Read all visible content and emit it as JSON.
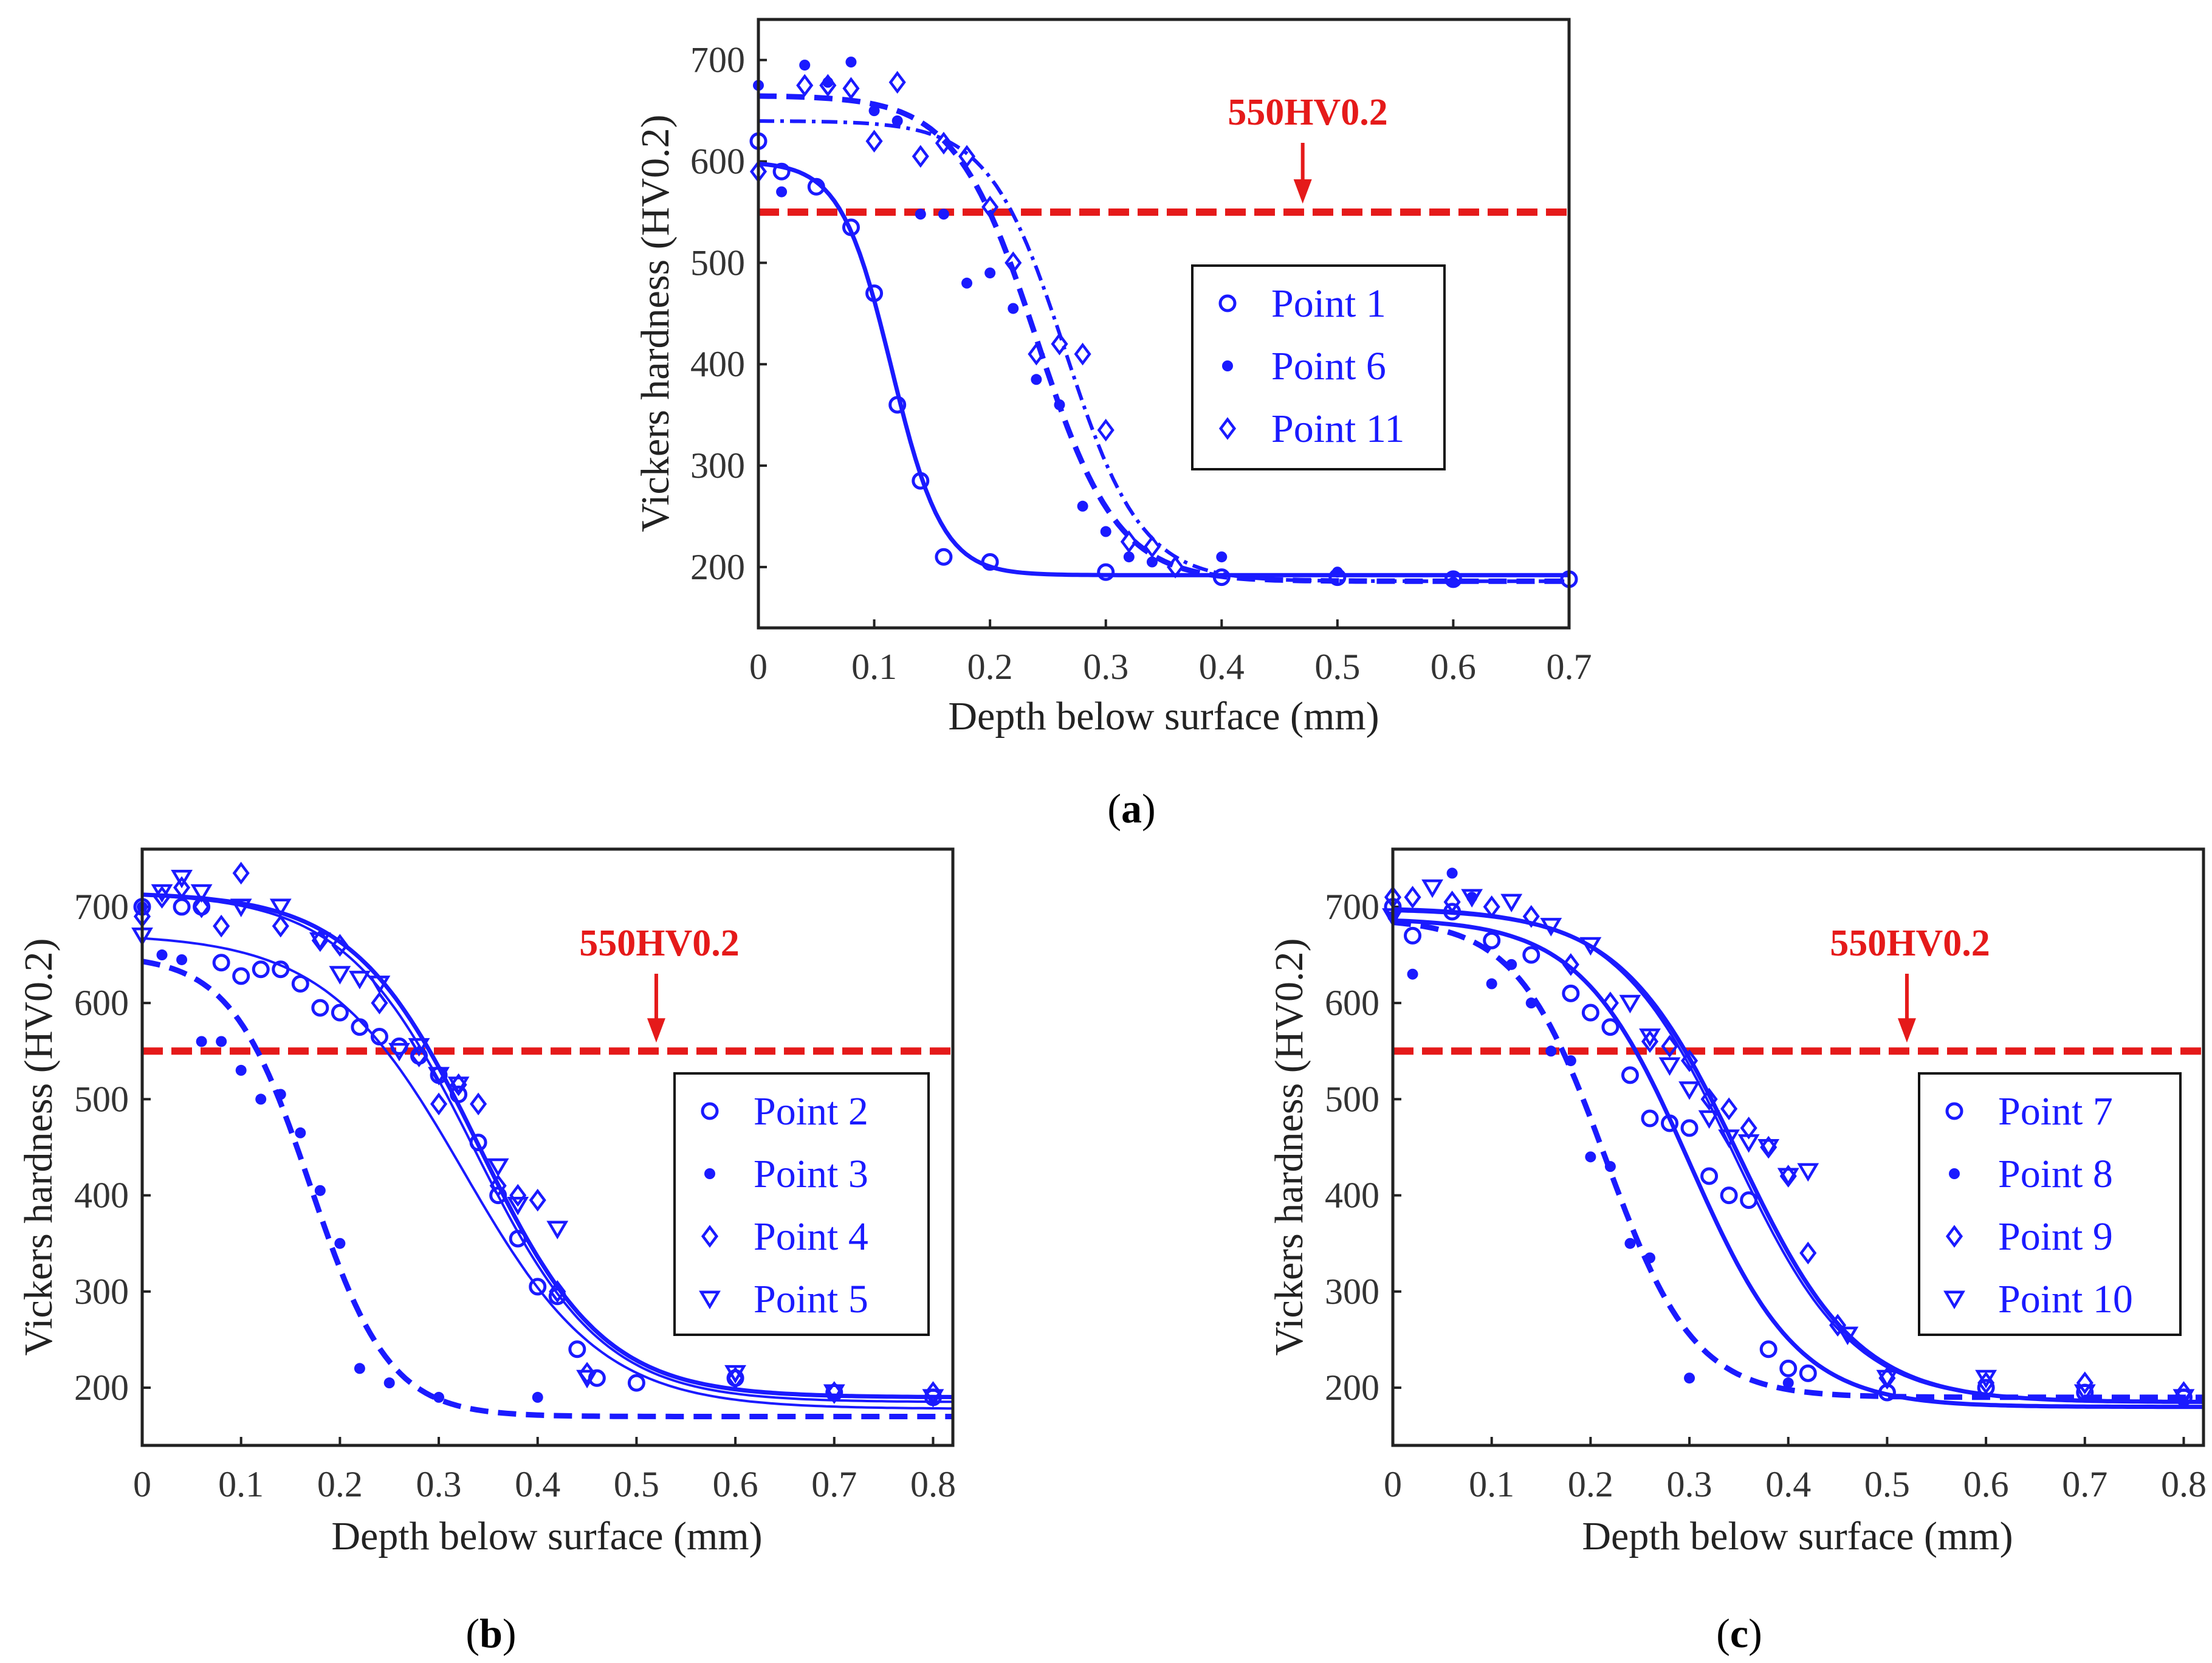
{
  "figure": {
    "captions": [
      {
        "open": "(",
        "letter": "a",
        "close": ")"
      },
      {
        "open": "(",
        "letter": "b",
        "close": ")"
      },
      {
        "open": "(",
        "letter": "c",
        "close": ")"
      }
    ]
  },
  "colors": {
    "series": "#1a1aff",
    "reference": "#e51a1a",
    "axis": "#222222"
  },
  "chart_data": [
    {
      "type": "scatter",
      "panel": "a",
      "xlabel": "Depth below surface (mm)",
      "ylabel": "Vickers hardness (HV0.2)",
      "xlim": [
        0,
        0.7
      ],
      "ylim": [
        140,
        740
      ],
      "xticks": [
        0,
        0.1,
        0.2,
        0.3,
        0.4,
        0.5,
        0.6,
        0.7
      ],
      "yticks": [
        200,
        300,
        400,
        500,
        600,
        700
      ],
      "reference": {
        "value": 550,
        "label": "550HV0.2",
        "arrow_x": 0.47
      },
      "legend_position": "right-middle",
      "series": [
        {
          "name": "Point 1",
          "marker": "circle",
          "line": "solid-thick",
          "fit": {
            "top": 600,
            "bottom": 192,
            "x0": 0.115,
            "w": 0.022
          },
          "points": [
            [
              0,
              620
            ],
            [
              0.02,
              590
            ],
            [
              0.05,
              575
            ],
            [
              0.08,
              535
            ],
            [
              0.1,
              470
            ],
            [
              0.12,
              360
            ],
            [
              0.14,
              285
            ],
            [
              0.16,
              210
            ],
            [
              0.2,
              205
            ],
            [
              0.3,
              195
            ],
            [
              0.4,
              190
            ],
            [
              0.5,
              190
            ],
            [
              0.6,
              188
            ],
            [
              0.7,
              188
            ]
          ]
        },
        {
          "name": "Point 6",
          "marker": "dot",
          "line": "dashed",
          "fit": {
            "top": 665,
            "bottom": 186,
            "x0": 0.24,
            "w": 0.035
          },
          "points": [
            [
              0,
              675
            ],
            [
              0.02,
              570
            ],
            [
              0.04,
              695
            ],
            [
              0.06,
              678
            ],
            [
              0.08,
              698
            ],
            [
              0.1,
              650
            ],
            [
              0.12,
              640
            ],
            [
              0.14,
              548
            ],
            [
              0.16,
              548
            ],
            [
              0.18,
              480
            ],
            [
              0.2,
              490
            ],
            [
              0.22,
              455
            ],
            [
              0.24,
              385
            ],
            [
              0.26,
              360
            ],
            [
              0.28,
              260
            ],
            [
              0.3,
              235
            ],
            [
              0.32,
              210
            ],
            [
              0.34,
              205
            ],
            [
              0.4,
              210
            ],
            [
              0.5,
              195
            ],
            [
              0.6,
              185
            ]
          ]
        },
        {
          "name": "Point 11",
          "marker": "diamond",
          "line": "dashdot",
          "fit": {
            "top": 640,
            "bottom": 186,
            "x0": 0.265,
            "w": 0.033
          },
          "points": [
            [
              0,
              590
            ],
            [
              0.04,
              675
            ],
            [
              0.06,
              675
            ],
            [
              0.08,
              672
            ],
            [
              0.1,
              620
            ],
            [
              0.12,
              678
            ],
            [
              0.14,
              605
            ],
            [
              0.16,
              618
            ],
            [
              0.18,
              605
            ],
            [
              0.2,
              555
            ],
            [
              0.22,
              500
            ],
            [
              0.24,
              410
            ],
            [
              0.26,
              420
            ],
            [
              0.28,
              410
            ],
            [
              0.3,
              335
            ],
            [
              0.32,
              225
            ],
            [
              0.34,
              220
            ],
            [
              0.36,
              200
            ]
          ]
        }
      ]
    },
    {
      "type": "scatter",
      "panel": "b",
      "xlabel": "Depth below surface (mm)",
      "ylabel": "Vickers hardness (HV0.2)",
      "xlim": [
        0,
        0.82
      ],
      "ylim": [
        140,
        760
      ],
      "xticks": [
        0,
        0.1,
        0.2,
        0.3,
        0.4,
        0.5,
        0.6,
        0.7,
        0.8
      ],
      "yticks": [
        200,
        300,
        400,
        500,
        600,
        700
      ],
      "reference": {
        "value": 550,
        "label": "550HV0.2",
        "arrow_x": 0.52
      },
      "legend_position": "right-middle",
      "series": [
        {
          "name": "Point 2",
          "marker": "circle",
          "line": "solid-thin",
          "fit": {
            "top": 672,
            "bottom": 178,
            "x0": 0.325,
            "w": 0.07
          },
          "points": [
            [
              0,
              700
            ],
            [
              0.04,
              700
            ],
            [
              0.06,
              700
            ],
            [
              0.08,
              642
            ],
            [
              0.1,
              628
            ],
            [
              0.12,
              635
            ],
            [
              0.14,
              635
            ],
            [
              0.16,
              620
            ],
            [
              0.18,
              595
            ],
            [
              0.2,
              590
            ],
            [
              0.22,
              575
            ],
            [
              0.24,
              565
            ],
            [
              0.26,
              555
            ],
            [
              0.28,
              545
            ],
            [
              0.3,
              525
            ],
            [
              0.32,
              505
            ],
            [
              0.34,
              455
            ],
            [
              0.36,
              400
            ],
            [
              0.38,
              355
            ],
            [
              0.4,
              305
            ],
            [
              0.42,
              295
            ],
            [
              0.44,
              240
            ],
            [
              0.46,
              210
            ],
            [
              0.5,
              205
            ],
            [
              0.6,
              210
            ],
            [
              0.7,
              195
            ],
            [
              0.8,
              190
            ]
          ]
        },
        {
          "name": "Point 3",
          "marker": "dot",
          "line": "dashed",
          "fit": {
            "top": 650,
            "bottom": 170,
            "x0": 0.17,
            "w": 0.04
          },
          "points": [
            [
              0,
              700
            ],
            [
              0.02,
              650
            ],
            [
              0.04,
              645
            ],
            [
              0.06,
              560
            ],
            [
              0.08,
              560
            ],
            [
              0.1,
              530
            ],
            [
              0.12,
              500
            ],
            [
              0.14,
              505
            ],
            [
              0.16,
              465
            ],
            [
              0.18,
              405
            ],
            [
              0.2,
              350
            ],
            [
              0.22,
              220
            ],
            [
              0.25,
              205
            ],
            [
              0.3,
              190
            ],
            [
              0.4,
              190
            ]
          ]
        },
        {
          "name": "Point 4",
          "marker": "diamond",
          "line": "solid-thin",
          "fit": {
            "top": 715,
            "bottom": 185,
            "x0": 0.335,
            "w": 0.065
          },
          "points": [
            [
              0,
              690
            ],
            [
              0.02,
              710
            ],
            [
              0.04,
              720
            ],
            [
              0.06,
              700
            ],
            [
              0.08,
              680
            ],
            [
              0.1,
              735
            ],
            [
              0.14,
              680
            ],
            [
              0.18,
              665
            ],
            [
              0.2,
              660
            ],
            [
              0.24,
              600
            ],
            [
              0.28,
              545
            ],
            [
              0.3,
              495
            ],
            [
              0.32,
              515
            ],
            [
              0.34,
              495
            ],
            [
              0.36,
              410
            ],
            [
              0.38,
              400
            ],
            [
              0.4,
              395
            ],
            [
              0.42,
              300
            ],
            [
              0.45,
              215
            ],
            [
              0.6,
              210
            ],
            [
              0.7,
              195
            ],
            [
              0.8,
              195
            ]
          ]
        },
        {
          "name": "Point 5",
          "marker": "triangle",
          "line": "solid-thick",
          "fit": {
            "top": 715,
            "bottom": 190,
            "x0": 0.34,
            "w": 0.063
          },
          "points": [
            [
              0,
              670
            ],
            [
              0.02,
              715
            ],
            [
              0.04,
              730
            ],
            [
              0.06,
              715
            ],
            [
              0.1,
              700
            ],
            [
              0.14,
              700
            ],
            [
              0.18,
              665
            ],
            [
              0.2,
              630
            ],
            [
              0.22,
              625
            ],
            [
              0.24,
              620
            ],
            [
              0.26,
              550
            ],
            [
              0.28,
              555
            ],
            [
              0.3,
              525
            ],
            [
              0.32,
              515
            ],
            [
              0.36,
              430
            ],
            [
              0.38,
              390
            ],
            [
              0.42,
              365
            ],
            [
              0.45,
              210
            ],
            [
              0.6,
              215
            ],
            [
              0.7,
              195
            ],
            [
              0.8,
              190
            ]
          ]
        }
      ]
    },
    {
      "type": "scatter",
      "panel": "c",
      "xlabel": "Depth below surface (mm)",
      "ylabel": "Vickers hardness (HV0.2)",
      "xlim": [
        0,
        0.82
      ],
      "ylim": [
        140,
        760
      ],
      "xticks": [
        0,
        0.1,
        0.2,
        0.3,
        0.4,
        0.5,
        0.6,
        0.7,
        0.8
      ],
      "yticks": [
        200,
        300,
        400,
        500,
        600,
        700
      ],
      "reference": {
        "value": 550,
        "label": "550HV0.2",
        "arrow_x": 0.52
      },
      "legend_position": "right-middle",
      "series": [
        {
          "name": "Point 7",
          "marker": "circle",
          "line": "solid-thick",
          "fit": {
            "top": 688,
            "bottom": 180,
            "x0": 0.3,
            "w": 0.055
          },
          "points": [
            [
              0,
              700
            ],
            [
              0.02,
              670
            ],
            [
              0.06,
              695
            ],
            [
              0.1,
              665
            ],
            [
              0.14,
              650
            ],
            [
              0.18,
              610
            ],
            [
              0.2,
              590
            ],
            [
              0.22,
              575
            ],
            [
              0.24,
              525
            ],
            [
              0.26,
              480
            ],
            [
              0.28,
              475
            ],
            [
              0.3,
              470
            ],
            [
              0.32,
              420
            ],
            [
              0.34,
              400
            ],
            [
              0.36,
              395
            ],
            [
              0.38,
              240
            ],
            [
              0.4,
              220
            ],
            [
              0.42,
              215
            ],
            [
              0.5,
              195
            ],
            [
              0.6,
              200
            ],
            [
              0.7,
              195
            ],
            [
              0.8,
              190
            ]
          ]
        },
        {
          "name": "Point 8",
          "marker": "dot",
          "line": "dashed",
          "fit": {
            "top": 688,
            "bottom": 190,
            "x0": 0.215,
            "w": 0.045
          },
          "points": [
            [
              0,
              690
            ],
            [
              0.02,
              630
            ],
            [
              0.06,
              735
            ],
            [
              0.08,
              710
            ],
            [
              0.1,
              620
            ],
            [
              0.12,
              640
            ],
            [
              0.14,
              600
            ],
            [
              0.16,
              550
            ],
            [
              0.18,
              540
            ],
            [
              0.2,
              440
            ],
            [
              0.22,
              430
            ],
            [
              0.24,
              350
            ],
            [
              0.26,
              335
            ],
            [
              0.3,
              210
            ],
            [
              0.4,
              205
            ]
          ]
        },
        {
          "name": "Point 9",
          "marker": "diamond",
          "line": "solid-thin",
          "fit": {
            "top": 700,
            "bottom": 185,
            "x0": 0.345,
            "w": 0.06
          },
          "points": [
            [
              0,
              710
            ],
            [
              0.02,
              710
            ],
            [
              0.06,
              705
            ],
            [
              0.1,
              700
            ],
            [
              0.14,
              690
            ],
            [
              0.18,
              640
            ],
            [
              0.22,
              600
            ],
            [
              0.26,
              560
            ],
            [
              0.28,
              555
            ],
            [
              0.3,
              540
            ],
            [
              0.32,
              500
            ],
            [
              0.34,
              490
            ],
            [
              0.36,
              470
            ],
            [
              0.38,
              450
            ],
            [
              0.4,
              420
            ],
            [
              0.42,
              340
            ],
            [
              0.45,
              265
            ],
            [
              0.5,
              210
            ],
            [
              0.6,
              205
            ],
            [
              0.7,
              205
            ],
            [
              0.8,
              195
            ]
          ]
        },
        {
          "name": "Point 10",
          "marker": "triangle",
          "line": "solid-thick",
          "fit": {
            "top": 698,
            "bottom": 185,
            "x0": 0.35,
            "w": 0.06
          },
          "points": [
            [
              0,
              690
            ],
            [
              0.04,
              720
            ],
            [
              0.08,
              710
            ],
            [
              0.12,
              705
            ],
            [
              0.16,
              680
            ],
            [
              0.2,
              660
            ],
            [
              0.24,
              600
            ],
            [
              0.26,
              565
            ],
            [
              0.28,
              535
            ],
            [
              0.3,
              510
            ],
            [
              0.32,
              480
            ],
            [
              0.34,
              460
            ],
            [
              0.36,
              455
            ],
            [
              0.38,
              450
            ],
            [
              0.4,
              420
            ],
            [
              0.42,
              425
            ],
            [
              0.46,
              255
            ],
            [
              0.5,
              210
            ],
            [
              0.6,
              210
            ],
            [
              0.7,
              195
            ],
            [
              0.8,
              190
            ]
          ]
        }
      ]
    }
  ]
}
